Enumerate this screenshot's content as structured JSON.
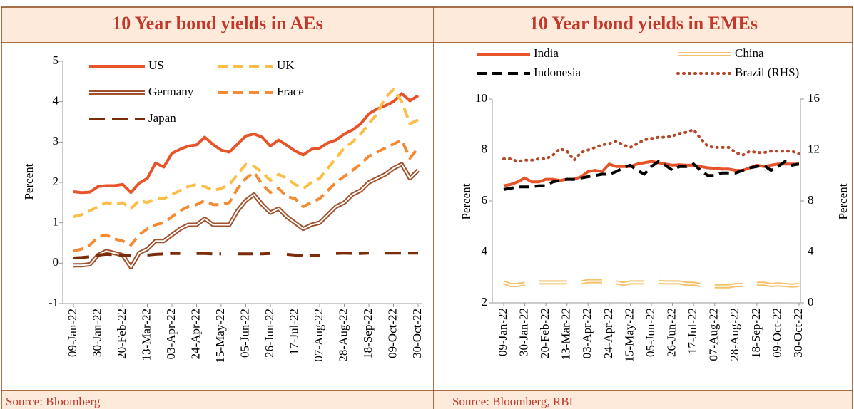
{
  "chart_data": [
    {
      "type": "line",
      "title": "10 Year bond yields in AEs",
      "ylabel": "Percent",
      "source": "Source: Bloomberg",
      "categories": [
        "09-Jan-22",
        null,
        null,
        "30-Jan-22",
        null,
        null,
        "20-Feb-22",
        null,
        null,
        "13-Mar-22",
        null,
        null,
        "03-Apr-22",
        null,
        null,
        "24-Apr-22",
        null,
        null,
        "15-May-22",
        null,
        null,
        "05-Jun-22",
        null,
        null,
        "26-Jun-22",
        null,
        null,
        "17-Jul-22",
        null,
        null,
        "07-Aug-22",
        null,
        null,
        "28-Aug-22",
        null,
        null,
        "18-Sep-22",
        null,
        null,
        "09-Oct-22",
        null,
        null,
        "30-Oct-22"
      ],
      "ylim": [
        -1,
        5
      ],
      "yticks": [
        -1,
        0,
        1,
        2,
        3,
        4,
        5
      ],
      "series": [
        {
          "name": "US",
          "color": "#e8542a",
          "style": "solid",
          "values": [
            1.77,
            1.75,
            1.76,
            1.9,
            1.92,
            1.92,
            1.95,
            1.75,
            1.98,
            2.1,
            2.48,
            2.38,
            2.72,
            2.82,
            2.9,
            2.93,
            3.12,
            2.94,
            2.8,
            2.75,
            2.95,
            3.15,
            3.2,
            3.12,
            2.9,
            3.05,
            2.92,
            2.78,
            2.68,
            2.82,
            2.85,
            2.98,
            3.05,
            3.2,
            3.3,
            3.45,
            3.7,
            3.82,
            3.9,
            4.0,
            4.2,
            4.02,
            4.15
          ]
        },
        {
          "name": "UK",
          "color": "#fbbf47",
          "style": "dashed",
          "values": [
            1.15,
            1.2,
            1.3,
            1.4,
            1.5,
            1.45,
            1.5,
            1.35,
            1.55,
            1.5,
            1.6,
            1.6,
            1.7,
            1.8,
            1.9,
            1.95,
            1.9,
            1.8,
            1.85,
            1.95,
            2.2,
            2.45,
            2.4,
            2.25,
            2.05,
            2.2,
            2.1,
            1.95,
            1.85,
            2.0,
            2.1,
            2.35,
            2.6,
            2.85,
            3.0,
            3.2,
            3.45,
            3.7,
            4.1,
            4.3,
            4.0,
            3.45,
            3.55
          ]
        },
        {
          "name": "Germany",
          "color": "#a0522d",
          "style": "double",
          "values": [
            -0.05,
            -0.05,
            -0.03,
            0.2,
            0.3,
            0.25,
            0.2,
            -0.1,
            0.25,
            0.35,
            0.55,
            0.55,
            0.7,
            0.85,
            0.95,
            0.95,
            1.1,
            0.95,
            0.95,
            0.95,
            1.3,
            1.55,
            1.7,
            1.45,
            1.25,
            1.35,
            1.15,
            1.0,
            0.85,
            0.95,
            1.0,
            1.2,
            1.4,
            1.5,
            1.7,
            1.8,
            2.0,
            2.1,
            2.2,
            2.35,
            2.45,
            2.1,
            2.3
          ]
        },
        {
          "name": "Frace",
          "color": "#f58a33",
          "style": "dashed",
          "values": [
            0.3,
            0.35,
            0.45,
            0.65,
            0.7,
            0.6,
            0.55,
            0.45,
            0.7,
            0.85,
            0.95,
            1.0,
            1.15,
            1.3,
            1.4,
            1.45,
            1.55,
            1.45,
            1.45,
            1.5,
            1.85,
            2.1,
            2.25,
            1.95,
            1.75,
            1.85,
            1.65,
            1.6,
            1.4,
            1.5,
            1.6,
            1.8,
            2.0,
            2.15,
            2.3,
            2.45,
            2.65,
            2.75,
            2.85,
            2.95,
            3.05,
            2.6,
            2.85
          ]
        },
        {
          "name": "Japan",
          "color": "#7b2c0a",
          "style": "longdash",
          "values": [
            0.13,
            0.14,
            0.16,
            0.2,
            0.22,
            0.21,
            0.2,
            0.18,
            null,
            0.2,
            0.22,
            0.23,
            0.24,
            0.24,
            null,
            0.24,
            0.24,
            0.23,
            0.23,
            null,
            0.23,
            0.23,
            0.23,
            0.23,
            0.24,
            null,
            0.22,
            0.2,
            0.18,
            0.19,
            0.2,
            null,
            0.24,
            0.25,
            0.24,
            0.24,
            0.25,
            null,
            0.25,
            0.25,
            0.25,
            0.25,
            0.25
          ]
        }
      ]
    },
    {
      "type": "line",
      "title": "10 Year bond yields in EMEs",
      "ylabel": "Percent",
      "y2label": "Percent",
      "source": "Source: Bloomberg, RBI",
      "categories": [
        "09-Jan-22",
        null,
        null,
        "30-Jan-22",
        null,
        null,
        "20-Feb-22",
        null,
        null,
        "13-Mar-22",
        null,
        null,
        "03-Apr-22",
        null,
        null,
        "24-Apr-22",
        null,
        null,
        "15-May-22",
        null,
        null,
        "05-Jun-22",
        null,
        null,
        "26-Jun-22",
        null,
        null,
        "17-Jul-22",
        null,
        null,
        "07-Aug-22",
        null,
        null,
        "28-Aug-22",
        null,
        null,
        "18-Sep-22",
        null,
        null,
        "09-Oct-22",
        null,
        null,
        "30-Oct-22"
      ],
      "ylim": [
        2,
        10
      ],
      "yticks": [
        2,
        4,
        6,
        8,
        10
      ],
      "y2lim": [
        0,
        16
      ],
      "y2ticks": [
        0,
        4,
        8,
        12,
        16
      ],
      "series": [
        {
          "name": "India",
          "color": "#e8542a",
          "style": "solid",
          "values": [
            6.6,
            6.65,
            6.75,
            6.9,
            6.75,
            6.75,
            6.85,
            6.85,
            6.8,
            6.85,
            6.85,
            6.95,
            7.15,
            7.2,
            7.15,
            7.45,
            7.35,
            7.35,
            7.35,
            7.45,
            7.5,
            7.55,
            7.5,
            7.45,
            7.4,
            7.42,
            7.4,
            7.4,
            7.35,
            7.3,
            7.28,
            7.25,
            7.25,
            7.2,
            7.2,
            7.3,
            7.4,
            7.35,
            7.4,
            7.45,
            7.45,
            7.45,
            7.45
          ]
        },
        {
          "name": "China",
          "color": "#f5c26b",
          "style": "double",
          "values": [
            2.8,
            2.7,
            2.7,
            2.75,
            null,
            2.8,
            2.8,
            2.8,
            2.8,
            2.8,
            null,
            2.8,
            2.85,
            2.85,
            2.85,
            null,
            2.8,
            2.75,
            2.8,
            2.8,
            2.8,
            null,
            2.82,
            2.8,
            2.8,
            2.8,
            2.75,
            2.75,
            2.7,
            null,
            2.65,
            2.65,
            2.65,
            2.7,
            2.7,
            null,
            2.75,
            2.75,
            2.7,
            2.72,
            2.7,
            2.68,
            2.7
          ]
        },
        {
          "name": "Indonesia",
          "color": "#000000",
          "style": "dashed",
          "values": [
            6.45,
            6.5,
            6.55,
            6.55,
            6.55,
            6.6,
            6.6,
            6.75,
            6.8,
            6.85,
            6.85,
            6.9,
            6.95,
            7.0,
            7.05,
            7.05,
            7.15,
            7.3,
            7.4,
            7.2,
            7.05,
            7.35,
            7.55,
            7.4,
            7.2,
            7.35,
            7.35,
            7.45,
            7.2,
            7.0,
            7.0,
            7.1,
            7.1,
            7.1,
            7.2,
            7.3,
            7.35,
            7.4,
            7.2,
            7.35,
            7.55,
            7.4,
            7.45
          ]
        },
        {
          "name": "Brazil (RHS)",
          "color": "#b5482a",
          "style": "dotted",
          "axis": "y2",
          "values": [
            11.3,
            11.3,
            11.1,
            11.2,
            11.2,
            11.3,
            11.3,
            11.6,
            12.1,
            11.9,
            11.2,
            11.8,
            12.0,
            12.2,
            12.4,
            12.5,
            12.7,
            12.4,
            12.2,
            12.5,
            12.8,
            12.9,
            13.0,
            13.0,
            13.1,
            13.3,
            13.4,
            13.6,
            12.9,
            12.3,
            12.2,
            12.2,
            12.2,
            11.8,
            11.6,
            11.9,
            11.8,
            11.8,
            11.9,
            11.9,
            11.9,
            11.9,
            11.7
          ]
        }
      ]
    }
  ]
}
